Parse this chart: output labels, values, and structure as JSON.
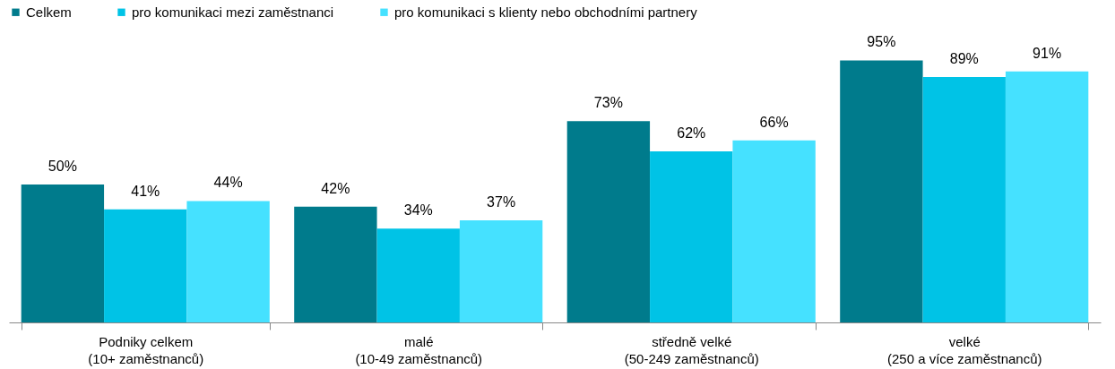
{
  "chart_data": {
    "type": "bar",
    "categories": [
      "Podniky celkem\n(10+ zaměstnanců)",
      "malé\n(10-49 zaměstnanců)",
      "středně velké\n(50-249 zaměstnanců)",
      "velké\n(250 a více zaměstnanců)"
    ],
    "series": [
      {
        "name": "Celkem",
        "color": "#007b8c",
        "values": [
          50,
          42,
          73,
          95
        ],
        "value_labels": [
          "50%",
          "42%",
          "73%",
          "95%"
        ]
      },
      {
        "name": "pro komunikaci mezi zaměstnanci",
        "color": "#00c3e6",
        "values": [
          41,
          34,
          62,
          89
        ],
        "value_labels": [
          "41%",
          "34%",
          "62%",
          "89%"
        ]
      },
      {
        "name": "pro komunikaci s klienty nebo obchodními partnery",
        "color": "#45e1ff",
        "values": [
          44,
          37,
          66,
          91
        ],
        "value_labels": [
          "44%",
          "37%",
          "66%",
          "91%"
        ]
      }
    ],
    "legend": "top"
  }
}
